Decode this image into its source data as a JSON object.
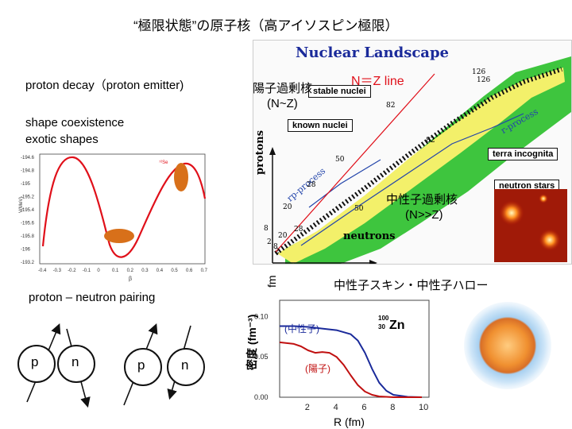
{
  "title": "“極限状態”の原子核（高アイソスピン極限）",
  "labels": {
    "proton_decay": "proton decay（proton emitter)",
    "shape_coexistence": "shape coexistence",
    "exotic_shapes": "exotic shapes",
    "pairing": "proton – neutron pairing",
    "proton_rich": "陽子過剰核",
    "proton_rich_cond": "(N~Z)",
    "nz_line": "N＝Z line",
    "neutron_rich": "中性子過剰核",
    "neutron_rich_cond": "(N>>Z)",
    "skin_halo": "中性子スキン・中性子ハロー"
  },
  "landscape": {
    "title": "Nuclear Landscape",
    "stable": "stable nuclei",
    "known": "known nuclei",
    "terra": "terra incognita",
    "nstars": "neutron stars",
    "rp": "rp-process",
    "r": "r-process",
    "protons": "protons",
    "neutrons": "neutrons",
    "magic": [
      "126",
      "82",
      "50",
      "28",
      "20",
      "8",
      "2",
      "82",
      "50",
      "28",
      "20",
      "8",
      "2",
      "126"
    ]
  },
  "colors": {
    "red": "#e0101a",
    "blue": "#1a2a9a",
    "orange": "#d8701a",
    "green": "#3ec53e",
    "yellow": "#f3f06a"
  },
  "pairing_particles": [
    "p",
    "n",
    "p",
    "n"
  ],
  "potential_chart": {
    "ylabel": "V(MeV)",
    "xlabel": "β",
    "yticks": [
      "-194.6",
      "-194.8",
      "-195",
      "-195.2",
      "-195.4",
      "-195.6",
      "-195.8",
      "-196",
      "-193.2"
    ],
    "xticks": [
      "-0.4",
      "-0.3",
      "-0.2",
      "-0.1",
      "0",
      "0.1",
      "0.2",
      "0.3",
      "0.4",
      "0.5",
      "0.6",
      "0.7"
    ],
    "tag": "⁷²Se"
  },
  "chart_data": {
    "type": "line",
    "title": "",
    "xlabel": "R (fm)",
    "ylabel": "密度 (fm⁻³)",
    "xlim": [
      0,
      10.5
    ],
    "ylim": [
      0,
      0.12
    ],
    "xticks": [
      "2",
      "4",
      "6",
      "8",
      "10"
    ],
    "yticks": [
      "0.00",
      "0.05",
      "0.10"
    ],
    "annotation": "Zn",
    "annotation_mass": "100",
    "annotation_z": "30",
    "series": [
      {
        "name": "(中性子)",
        "color": "#1a2a9a",
        "x": [
          0,
          1,
          2,
          3,
          4,
          5,
          5.5,
          6,
          6.5,
          7,
          7.5,
          8,
          9,
          10
        ],
        "y": [
          0.088,
          0.088,
          0.087,
          0.085,
          0.083,
          0.078,
          0.07,
          0.055,
          0.035,
          0.018,
          0.008,
          0.003,
          0.0005,
          0.0
        ]
      },
      {
        "name": "(陽子)",
        "color": "#c01010",
        "x": [
          0,
          1,
          1.5,
          2,
          2.5,
          3,
          3.5,
          4,
          4.5,
          5,
          5.5,
          6,
          6.5,
          7,
          8,
          10
        ],
        "y": [
          0.068,
          0.066,
          0.063,
          0.058,
          0.055,
          0.056,
          0.055,
          0.05,
          0.04,
          0.027,
          0.015,
          0.007,
          0.003,
          0.001,
          0.0,
          0.0
        ]
      }
    ]
  },
  "fm_label": "fm"
}
